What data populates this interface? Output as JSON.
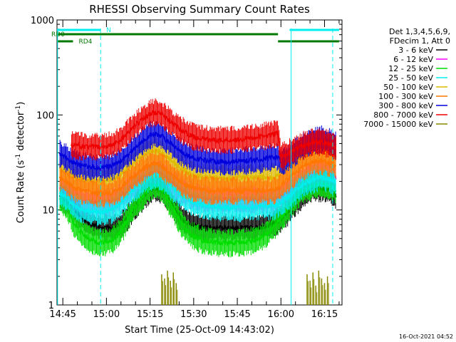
{
  "chart_data": {
    "type": "line",
    "title": "RHESSI Observing Summary Count Rates",
    "xlabel": "Start Time (25-Oct-09 14:43:02)",
    "ylabel_main": "Count Rate (s",
    "ylabel_sup1": "-1",
    "ylabel_mid": " detector",
    "ylabel_sup2": "-1",
    "ylabel_end": ")",
    "yscale": "log",
    "ylim": [
      1,
      1000
    ],
    "xlim_minutes": [
      0,
      98
    ],
    "x_ticks": [
      {
        "label": "14:45",
        "minute": 2
      },
      {
        "label": "15:00",
        "minute": 17
      },
      {
        "label": "15:15",
        "minute": 32
      },
      {
        "label": "15:30",
        "minute": 47
      },
      {
        "label": "15:45",
        "minute": 62
      },
      {
        "label": "16:00",
        "minute": 77
      },
      {
        "label": "16:15",
        "minute": 92
      }
    ],
    "y_ticks": [
      {
        "label": "1",
        "value": 1
      },
      {
        "label": "10",
        "value": 10
      },
      {
        "label": "100",
        "value": 100
      },
      {
        "label": "1000",
        "value": 1000
      }
    ],
    "legend_header": [
      "Det 1,3,4,5,6,9,",
      "FDecim 1, Att 0"
    ],
    "legend_position": "right",
    "series": [
      {
        "name": "3 - 6 keV",
        "color": "#000000",
        "points": [
          [
            1,
            14
          ],
          [
            4,
            12
          ],
          [
            6,
            10
          ],
          [
            9,
            8
          ],
          [
            12,
            7
          ],
          [
            15,
            6.5
          ],
          [
            19,
            6.5
          ],
          [
            22,
            7
          ],
          [
            25,
            9
          ],
          [
            28,
            12
          ],
          [
            31,
            15
          ],
          [
            33,
            17
          ],
          [
            35,
            17
          ],
          [
            37,
            15
          ],
          [
            40,
            11
          ],
          [
            43,
            8
          ],
          [
            46,
            7
          ],
          [
            50,
            6.5
          ],
          [
            56,
            6.5
          ],
          [
            62,
            6.5
          ],
          [
            68,
            6.5
          ],
          [
            74,
            7
          ],
          [
            77,
            8
          ],
          [
            80,
            10
          ],
          [
            84,
            14
          ],
          [
            88,
            17
          ],
          [
            91,
            17
          ],
          [
            94,
            16
          ],
          [
            96,
            14
          ]
        ]
      },
      {
        "name": "6 - 12 keV",
        "color": "#ff00ff",
        "points": [
          [
            1,
            17
          ],
          [
            4,
            15
          ],
          [
            6,
            13
          ],
          [
            9,
            12
          ],
          [
            14,
            12
          ],
          [
            19,
            12
          ],
          [
            22,
            14
          ],
          [
            25,
            17
          ],
          [
            29,
            21
          ],
          [
            32,
            24
          ],
          [
            34,
            25
          ],
          [
            36,
            24
          ],
          [
            39,
            20
          ],
          [
            43,
            16
          ],
          [
            47,
            14
          ],
          [
            52,
            13
          ],
          [
            58,
            13
          ],
          [
            64,
            13
          ],
          [
            70,
            13
          ],
          [
            75,
            13
          ],
          [
            77,
            14
          ],
          [
            80,
            16
          ],
          [
            84,
            21
          ],
          [
            88,
            24
          ],
          [
            91,
            25
          ],
          [
            94,
            24
          ],
          [
            96,
            22
          ]
        ]
      },
      {
        "name": "12 - 25 keV",
        "color": "#00dd00",
        "points": [
          [
            1,
            13
          ],
          [
            4,
            10
          ],
          [
            6,
            7
          ],
          [
            9,
            5.5
          ],
          [
            12,
            4.8
          ],
          [
            15,
            4.5
          ],
          [
            19,
            4.8
          ],
          [
            22,
            6
          ],
          [
            25,
            9
          ],
          [
            28,
            12
          ],
          [
            31,
            16
          ],
          [
            33,
            18
          ],
          [
            35,
            18
          ],
          [
            37,
            15
          ],
          [
            40,
            10
          ],
          [
            43,
            7
          ],
          [
            46,
            5.5
          ],
          [
            50,
            4.8
          ],
          [
            56,
            4.5
          ],
          [
            62,
            4.5
          ],
          [
            68,
            4.8
          ],
          [
            72,
            5.5
          ],
          [
            75,
            7
          ],
          [
            78,
            9
          ],
          [
            81,
            12
          ],
          [
            84,
            16
          ],
          [
            88,
            18
          ],
          [
            91,
            19
          ],
          [
            94,
            18
          ],
          [
            96,
            16
          ]
        ]
      },
      {
        "name": "25 - 50 keV",
        "color": "#00eeee",
        "points": [
          [
            1,
            15
          ],
          [
            4,
            13
          ],
          [
            6,
            11
          ],
          [
            9,
            10
          ],
          [
            14,
            9.5
          ],
          [
            19,
            10
          ],
          [
            22,
            12
          ],
          [
            25,
            15
          ],
          [
            29,
            19
          ],
          [
            32,
            22
          ],
          [
            34,
            23
          ],
          [
            36,
            22
          ],
          [
            39,
            18
          ],
          [
            43,
            14
          ],
          [
            47,
            12
          ],
          [
            52,
            11
          ],
          [
            58,
            10.5
          ],
          [
            64,
            10.5
          ],
          [
            70,
            11
          ],
          [
            75,
            11
          ],
          [
            77,
            12
          ],
          [
            80,
            14
          ],
          [
            84,
            18
          ],
          [
            88,
            21
          ],
          [
            91,
            22
          ],
          [
            94,
            21
          ],
          [
            96,
            19
          ]
        ]
      },
      {
        "name": "50 - 100 keV",
        "color": "#ddbb00",
        "points": [
          [
            1,
            28
          ],
          [
            4,
            24
          ],
          [
            6,
            22
          ],
          [
            9,
            21
          ],
          [
            14,
            20
          ],
          [
            19,
            21
          ],
          [
            22,
            24
          ],
          [
            25,
            29
          ],
          [
            29,
            36
          ],
          [
            32,
            41
          ],
          [
            34,
            42
          ],
          [
            36,
            40
          ],
          [
            39,
            34
          ],
          [
            43,
            27
          ],
          [
            47,
            23
          ],
          [
            52,
            22
          ],
          [
            58,
            21.5
          ],
          [
            64,
            22
          ],
          [
            70,
            22
          ],
          [
            75,
            22
          ],
          [
            77,
            24
          ],
          [
            80,
            29
          ],
          [
            84,
            36
          ],
          [
            88,
            40
          ],
          [
            91,
            41
          ],
          [
            94,
            39
          ],
          [
            96,
            36
          ]
        ]
      },
      {
        "name": "100 - 300 keV",
        "color": "#ff7700",
        "points": [
          [
            1,
            22
          ],
          [
            4,
            19
          ],
          [
            6,
            17
          ],
          [
            9,
            16
          ],
          [
            14,
            15
          ],
          [
            19,
            15
          ],
          [
            22,
            17
          ],
          [
            25,
            21
          ],
          [
            29,
            26
          ],
          [
            32,
            30
          ],
          [
            34,
            31
          ],
          [
            36,
            29
          ],
          [
            39,
            24
          ],
          [
            43,
            19
          ],
          [
            47,
            17
          ],
          [
            52,
            16
          ],
          [
            58,
            16
          ],
          [
            64,
            16
          ],
          [
            70,
            16
          ],
          [
            75,
            16
          ],
          [
            77,
            18
          ],
          [
            80,
            22
          ],
          [
            84,
            28
          ],
          [
            88,
            32
          ],
          [
            91,
            33
          ],
          [
            94,
            31
          ],
          [
            96,
            29
          ]
        ]
      },
      {
        "name": "300 - 800 keV",
        "color": "#0000dd",
        "points": [
          [
            1,
            39
          ],
          [
            4,
            34
          ],
          [
            6,
            31
          ],
          [
            9,
            29
          ],
          [
            14,
            28
          ],
          [
            19,
            29
          ],
          [
            22,
            33
          ],
          [
            25,
            40
          ],
          [
            29,
            52
          ],
          [
            32,
            61
          ],
          [
            34,
            63
          ],
          [
            36,
            60
          ],
          [
            39,
            50
          ],
          [
            43,
            40
          ],
          [
            47,
            35
          ],
          [
            52,
            33
          ],
          [
            58,
            32
          ],
          [
            64,
            33
          ],
          [
            70,
            34
          ],
          [
            74,
            36
          ],
          [
            76,
            36
          ],
          [
            77,
            31
          ],
          [
            80,
            36
          ],
          [
            84,
            46
          ],
          [
            88,
            53
          ],
          [
            91,
            55
          ],
          [
            94,
            52
          ],
          [
            96,
            47
          ]
        ]
      },
      {
        "name": "800 - 7000 keV",
        "color": "#ee0000",
        "points": [
          [
            5,
            48
          ],
          [
            8,
            47
          ],
          [
            12,
            46
          ],
          [
            16,
            47
          ],
          [
            19,
            48
          ],
          [
            22,
            55
          ],
          [
            25,
            69
          ],
          [
            29,
            89
          ],
          [
            32,
            104
          ],
          [
            34,
            106
          ],
          [
            36,
            101
          ],
          [
            39,
            85
          ],
          [
            43,
            68
          ],
          [
            47,
            59
          ],
          [
            52,
            55
          ],
          [
            58,
            54
          ],
          [
            64,
            56
          ],
          [
            70,
            59
          ],
          [
            74,
            62
          ],
          [
            76,
            64
          ],
          [
            77,
            36
          ],
          [
            80,
            40
          ],
          [
            84,
            47
          ],
          [
            88,
            52
          ],
          [
            91,
            52
          ],
          [
            94,
            49
          ],
          [
            96,
            45
          ]
        ]
      },
      {
        "name": "7000 - 15000 keV",
        "color": "#888800",
        "bursts": [
          [
            36,
            2.1
          ],
          [
            37,
            1.9
          ],
          [
            38,
            2.3
          ],
          [
            39,
            1.8
          ],
          [
            40,
            2.2
          ],
          [
            41,
            1.7
          ],
          [
            86,
            2.1
          ],
          [
            87,
            1.8
          ],
          [
            88,
            2.2
          ],
          [
            89,
            1.6
          ],
          [
            90,
            2.3
          ],
          [
            91,
            1.9
          ],
          [
            92,
            1.7
          ],
          [
            93,
            2.0
          ]
        ]
      }
    ],
    "attenuator_bars": [
      {
        "label": "N",
        "color": "#00eeee",
        "segments": [
          [
            0,
            15
          ]
        ]
      },
      {
        "label": "",
        "color": "#00eeee",
        "segments": [
          [
            80,
            97
          ]
        ]
      },
      {
        "label": "RD0",
        "color": "#007700",
        "segments": [
          [
            0,
            76
          ]
        ]
      },
      {
        "label": "RD4",
        "color": "#007700",
        "segments": [
          [
            0,
            5.5
          ],
          [
            76,
            97
          ]
        ]
      }
    ],
    "saa_lines_minutes": [
      0.2,
      15,
      80.5,
      94.8
    ]
  },
  "timestamp": "16-Oct-2021 04:52"
}
